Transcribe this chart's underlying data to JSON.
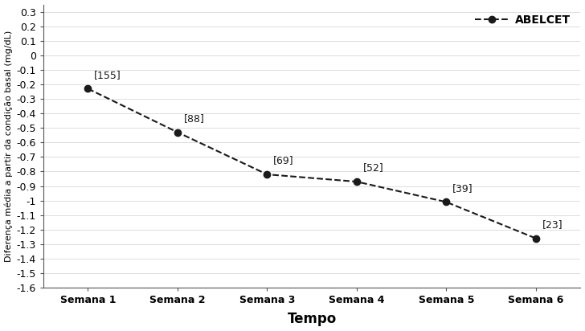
{
  "x_labels": [
    "Semana 1",
    "Semana 2",
    "Semana 3",
    "Semana 4",
    "Semana 5",
    "Semana 6"
  ],
  "x_values": [
    1,
    2,
    3,
    4,
    5,
    6
  ],
  "y_values": [
    -0.23,
    -0.53,
    -0.82,
    -0.87,
    -1.01,
    -1.26
  ],
  "annotations": [
    "[155]",
    "[88]",
    "[69]",
    "[52]",
    "[39]",
    "[23]"
  ],
  "ann_offset_x": [
    0.05,
    0.05,
    0.05,
    0.05,
    0.05,
    0.05
  ],
  "ann_offset_y": [
    0.06,
    0.06,
    0.06,
    0.06,
    0.06,
    0.06
  ],
  "ylabel": "Diferença média a partir da condição basal (mg/dL)",
  "xlabel": "Tempo",
  "ylim": [
    -1.6,
    0.35
  ],
  "ytick_vals": [
    0.3,
    0.2,
    0.1,
    0,
    -0.1,
    -0.2,
    -0.3,
    -0.4,
    -0.5,
    -0.6,
    -0.7,
    -0.8,
    -0.9,
    -1,
    -1.1,
    -1.2,
    -1.3,
    -1.4,
    -1.5,
    -1.6
  ],
  "ytick_labels": [
    "0.3",
    "0.2",
    "0.1",
    "0",
    "-0.1",
    "-0.2",
    "-0.3",
    "-0.4",
    "-0.5",
    "-0.6",
    "-0.7",
    "-0.8",
    "-0.9",
    "-1",
    "-1.1",
    "-1.2",
    "-1.3",
    "-1.4",
    "-1.5",
    "-1.6"
  ],
  "line_color": "#1a1a1a",
  "marker_color": "#1a1a1a",
  "legend_label": "ABELCET",
  "background_color": "#ffffff",
  "grid_color": "#d0d0d0",
  "spine_color": "#555555",
  "figsize": [
    7.28,
    4.12
  ],
  "dpi": 100
}
